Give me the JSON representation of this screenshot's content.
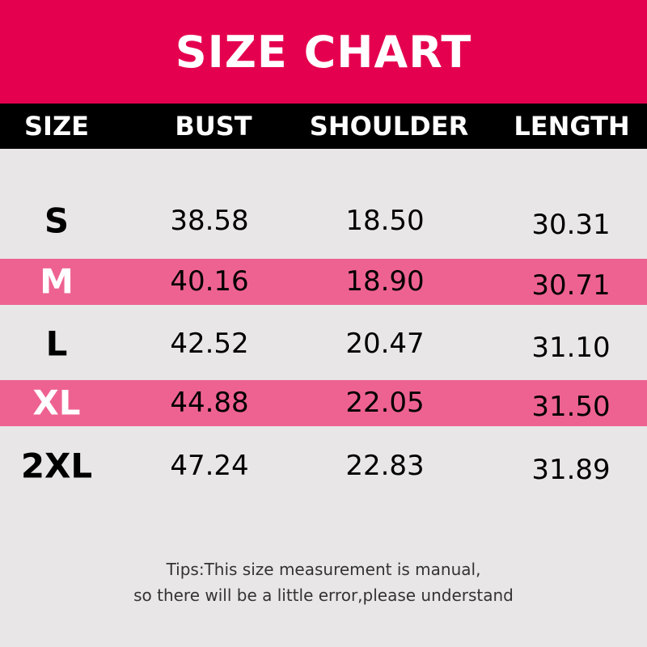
{
  "title": "SIZE CHART",
  "columns": [
    "SIZE",
    "BUST",
    "SHOULDER",
    "LENGTH"
  ],
  "rows": [
    {
      "size": "S",
      "bust": "38.58",
      "shoulder": "18.50",
      "length": "30.31",
      "highlight": false
    },
    {
      "size": "M",
      "bust": "40.16",
      "shoulder": "18.90",
      "length": "30.71",
      "highlight": true
    },
    {
      "size": "L",
      "bust": "42.52",
      "shoulder": "20.47",
      "length": "31.10",
      "highlight": false
    },
    {
      "size": "XL",
      "bust": "44.88",
      "shoulder": "22.05",
      "length": "31.50",
      "highlight": true
    },
    {
      "size": "2XL",
      "bust": "47.24",
      "shoulder": "22.83",
      "length": "31.89",
      "highlight": false
    }
  ],
  "tips": [
    "Tips:This size measurement is manual,",
    "so there will be a little error,please understand"
  ],
  "colors": {
    "banner": "#e5004f",
    "header": "#000000",
    "highlight_row": "#ee6291",
    "background": "#e8e6e7"
  }
}
